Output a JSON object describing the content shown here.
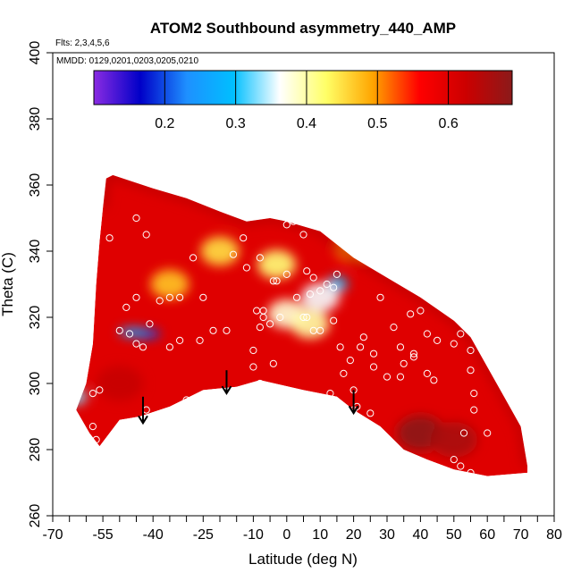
{
  "chart_data": {
    "type": "heatmap",
    "title": "ATOM2 Southbound asymmetry_440_AMP",
    "flights_note": "Flts: 2,3,4,5,6",
    "dates_note": "MMDD: 0129,0201,0203,0205,0210",
    "xlabel": "Latitude (deg N)",
    "ylabel": "Theta (C)",
    "xlim": [
      -70,
      80
    ],
    "ylim": [
      260,
      400
    ],
    "x_ticks": [
      -70,
      -55,
      -40,
      -25,
      -10,
      0,
      10,
      20,
      30,
      40,
      50,
      60,
      70,
      80
    ],
    "y_ticks": [
      260,
      280,
      300,
      320,
      340,
      360,
      380,
      400
    ],
    "colorbar": {
      "range": [
        0.1,
        0.69
      ],
      "ticks": [
        0.2,
        0.3,
        0.4,
        0.5,
        0.6
      ],
      "colors": [
        "#8a2be2",
        "#0000c8",
        "#1e90ff",
        "#00bfff",
        "#ffffff",
        "#ffff66",
        "#ffa500",
        "#ff0000",
        "#cc0000",
        "#8b1a1a"
      ]
    },
    "field_boundary": {
      "top": [
        [
          -55,
          353
        ],
        [
          -54,
          362
        ],
        [
          -52,
          363
        ],
        [
          -40,
          359
        ],
        [
          -30,
          356
        ],
        [
          -20,
          352
        ],
        [
          -12,
          349
        ],
        [
          -5,
          350
        ],
        [
          0,
          349
        ],
        [
          10,
          346
        ],
        [
          20,
          338
        ],
        [
          30,
          332
        ],
        [
          40,
          326
        ],
        [
          50,
          319
        ],
        [
          55,
          314
        ],
        [
          60,
          305
        ],
        [
          65,
          296
        ],
        [
          70,
          287
        ],
        [
          72,
          275
        ]
      ],
      "bottom": [
        [
          72,
          273
        ],
        [
          60,
          272
        ],
        [
          50,
          274
        ],
        [
          42,
          277
        ],
        [
          35,
          280
        ],
        [
          28,
          287
        ],
        [
          20,
          292
        ],
        [
          15,
          296
        ],
        [
          5,
          298
        ],
        [
          -8,
          301
        ],
        [
          -15,
          299
        ],
        [
          -25,
          298
        ],
        [
          -35,
          293
        ],
        [
          -44,
          290
        ],
        [
          -50,
          289
        ],
        [
          -56,
          281
        ],
        [
          -59,
          285
        ],
        [
          -63,
          292
        ],
        [
          -60,
          300
        ],
        [
          -58,
          312
        ],
        [
          -57,
          330
        ],
        [
          -56,
          343
        ],
        [
          -55,
          353
        ]
      ]
    },
    "anomalies": [
      {
        "x": -42,
        "y": 315,
        "v": 0.2
      },
      {
        "x": -46,
        "y": 315.5,
        "v": 0.25
      },
      {
        "x": -63,
        "y": 296,
        "v": 0.33
      },
      {
        "x": 15,
        "y": 330,
        "v": 0.3
      },
      {
        "x": 10,
        "y": 326,
        "v": 0.36
      },
      {
        "x": 0,
        "y": 321,
        "v": 0.38
      },
      {
        "x": 7,
        "y": 318,
        "v": 0.4
      },
      {
        "x": -3,
        "y": 336,
        "v": 0.42
      },
      {
        "x": -20,
        "y": 340,
        "v": 0.45
      },
      {
        "x": -35,
        "y": 330,
        "v": 0.47
      },
      {
        "x": 20,
        "y": 341,
        "v": 0.5
      },
      {
        "x": 40,
        "y": 285,
        "v": 0.69
      },
      {
        "x": 50,
        "y": 283,
        "v": 0.66
      },
      {
        "x": -50,
        "y": 300,
        "v": 0.63
      }
    ],
    "obs_points": [
      [
        -53,
        344
      ],
      [
        -45,
        350
      ],
      [
        -42,
        345
      ],
      [
        -48,
        323
      ],
      [
        -45,
        326
      ],
      [
        -38,
        325
      ],
      [
        -41,
        318
      ],
      [
        -45,
        312
      ],
      [
        -47,
        315
      ],
      [
        -50,
        316
      ],
      [
        -43,
        311
      ],
      [
        -35,
        326
      ],
      [
        -32,
        326
      ],
      [
        -28,
        338
      ],
      [
        -25,
        326
      ],
      [
        -22,
        316
      ],
      [
        -26,
        313
      ],
      [
        -32,
        313
      ],
      [
        -35,
        311
      ],
      [
        -30,
        295
      ],
      [
        -42,
        292
      ],
      [
        -58,
        297
      ],
      [
        -56,
        298
      ],
      [
        -57,
        283
      ],
      [
        -58,
        287
      ],
      [
        -16,
        339
      ],
      [
        -13,
        344
      ],
      [
        -12,
        335
      ],
      [
        -8,
        338
      ],
      [
        -4,
        331
      ],
      [
        -7,
        322
      ],
      [
        -9,
        322
      ],
      [
        -8,
        317
      ],
      [
        -10,
        310
      ],
      [
        -10,
        305
      ],
      [
        -8,
        300
      ],
      [
        -4,
        306
      ],
      [
        -2,
        320
      ],
      [
        -3,
        331
      ],
      [
        0,
        333
      ],
      [
        0,
        348
      ],
      [
        2,
        349
      ],
      [
        5,
        345
      ],
      [
        6,
        334
      ],
      [
        7,
        327
      ],
      [
        8,
        332
      ],
      [
        10,
        349
      ],
      [
        10,
        328
      ],
      [
        12,
        330
      ],
      [
        15,
        333
      ],
      [
        14,
        329
      ],
      [
        16,
        311
      ],
      [
        17,
        303
      ],
      [
        13,
        297
      ],
      [
        19,
        307
      ],
      [
        20,
        298
      ],
      [
        23,
        314
      ],
      [
        26,
        309
      ],
      [
        26,
        305
      ],
      [
        28,
        326
      ],
      [
        32,
        317
      ],
      [
        34,
        311
      ],
      [
        35,
        306
      ],
      [
        38,
        309
      ],
      [
        38,
        308
      ],
      [
        34,
        302
      ],
      [
        37,
        321
      ],
      [
        40,
        322
      ],
      [
        42,
        315
      ],
      [
        42,
        303
      ],
      [
        44,
        301
      ],
      [
        45,
        313
      ],
      [
        48,
        323
      ],
      [
        50,
        312
      ],
      [
        52,
        315
      ],
      [
        55,
        310
      ],
      [
        55,
        304
      ],
      [
        56,
        297
      ],
      [
        56,
        292
      ],
      [
        60,
        285
      ],
      [
        53,
        285
      ],
      [
        50,
        277
      ],
      [
        52,
        275
      ],
      [
        55,
        273
      ],
      [
        25,
        291
      ],
      [
        20,
        292
      ],
      [
        21,
        293
      ],
      [
        -7,
        320
      ],
      [
        -5,
        318
      ],
      [
        5,
        320
      ],
      [
        8,
        316
      ],
      [
        3,
        326
      ],
      [
        10,
        316
      ],
      [
        -18,
        316
      ],
      [
        22,
        311
      ],
      [
        30,
        302
      ],
      [
        14,
        319
      ],
      [
        6,
        320
      ]
    ],
    "arrows": [
      {
        "x": -43,
        "y_top": 296,
        "y_bottom": 288
      },
      {
        "x": -18,
        "y_top": 304,
        "y_bottom": 297
      },
      {
        "x": 20,
        "y_top": 298,
        "y_bottom": 291
      }
    ]
  }
}
